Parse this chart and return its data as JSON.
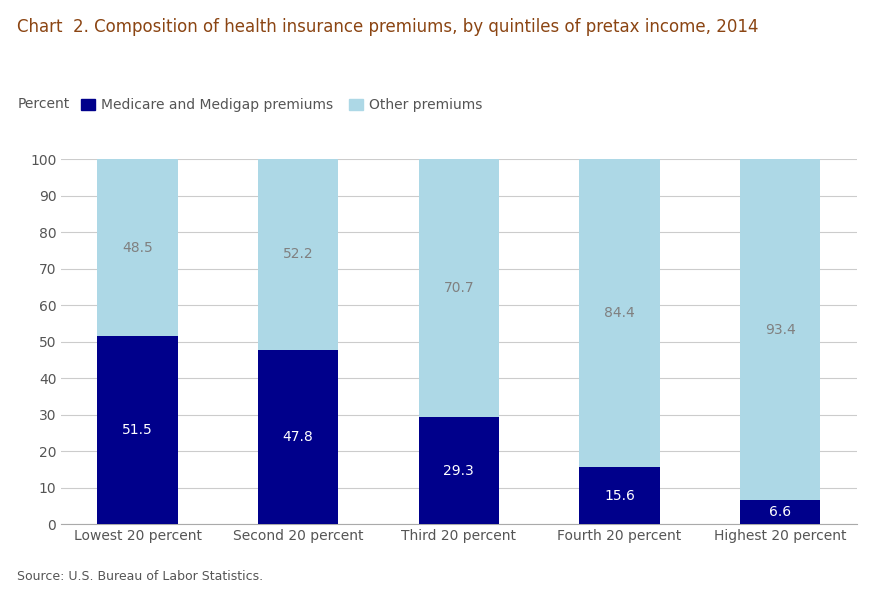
{
  "title": "Chart  2. Composition of health insurance premiums, by quintiles of pretax income, 2014",
  "percent_label": "Percent",
  "source": "Source: U.S. Bureau of Labor Statistics.",
  "categories": [
    "Lowest 20 percent",
    "Second 20 percent",
    "Third 20 percent",
    "Fourth 20 percent",
    "Highest 20 percent"
  ],
  "medicare_values": [
    51.5,
    47.8,
    29.3,
    15.6,
    6.6
  ],
  "other_values": [
    48.5,
    52.2,
    70.7,
    84.4,
    93.4
  ],
  "medicare_color": "#00008B",
  "other_color": "#ADD8E6",
  "title_color": "#8B4513",
  "label_color_dark": "#808080",
  "label_color_white": "#FFFFFF",
  "background_color": "#FFFFFF",
  "title_fontsize": 12,
  "label_fontsize": 10,
  "tick_fontsize": 10,
  "source_fontsize": 9,
  "legend_label_medicare": "Medicare and Medigap premiums",
  "legend_label_other": "Other premiums",
  "ylim": [
    0,
    100
  ],
  "yticks": [
    0,
    10,
    20,
    30,
    40,
    50,
    60,
    70,
    80,
    90,
    100
  ],
  "bar_width": 0.5
}
